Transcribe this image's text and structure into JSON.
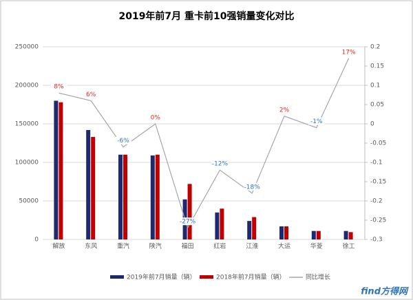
{
  "chart_data": {
    "type": "bar",
    "title": "2019年前7月 重卡前10强销量变化对比",
    "categories": [
      "解放",
      "东风",
      "重汽",
      "陕汽",
      "福田",
      "红岩",
      "江淮",
      "大运",
      "华菱",
      "徐工"
    ],
    "series": [
      {
        "name": "2019年前7月销量（辆）",
        "color": "#1f2a6e",
        "values": [
          180000,
          142000,
          110000,
          109000,
          52000,
          35000,
          24000,
          17000,
          11000,
          11000
        ]
      },
      {
        "name": "2018年前7月销量（辆）",
        "color": "#c00000",
        "values": [
          178000,
          133000,
          110000,
          110000,
          72000,
          40000,
          29000,
          17000,
          11000,
          9500
        ]
      },
      {
        "name": "同比增长",
        "color": "#a6a6a6",
        "axis": "y2",
        "values": [
          0.08,
          0.06,
          -0.06,
          0,
          -0.27,
          -0.12,
          -0.18,
          0.02,
          -0.01,
          0.17
        ],
        "value_labels": [
          "8%",
          "6%",
          "-6%",
          "0%",
          "-27%",
          "-12%",
          "-18%",
          "2%",
          "-1%",
          "17%"
        ]
      }
    ],
    "label_colors": {
      "positive": "#e8251f",
      "negative": "#2e75b6"
    },
    "ylim": [
      0,
      250000
    ],
    "yticks": [
      0,
      50000,
      100000,
      150000,
      200000,
      250000
    ],
    "y2lim": [
      -0.3,
      0.2
    ],
    "y2ticks": [
      -0.3,
      -0.25,
      -0.2,
      -0.15,
      -0.1,
      -0.05,
      0,
      0.05,
      0.1,
      0.15,
      0.2
    ],
    "grid": true,
    "legend": "bottom",
    "watermark": "find方得网"
  }
}
